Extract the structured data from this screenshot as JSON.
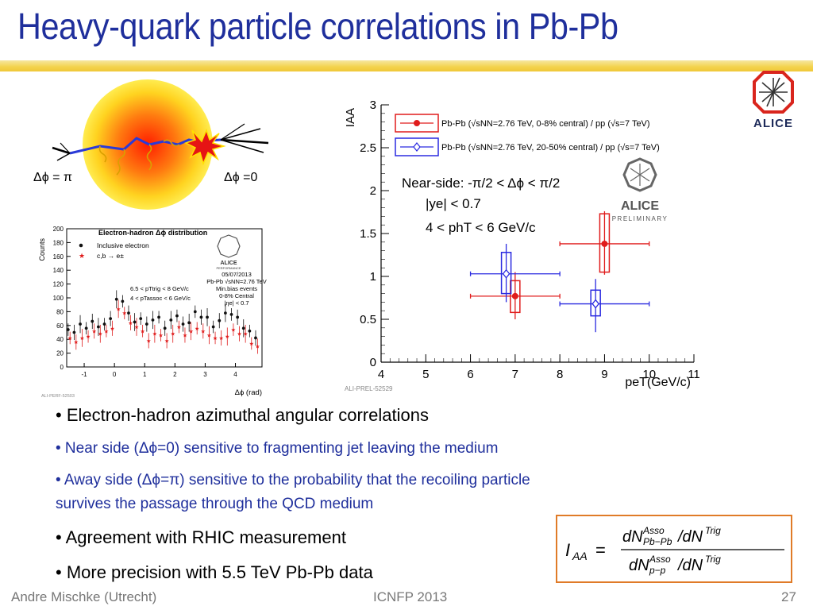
{
  "slide": {
    "title": "Heavy-quark particle correlations in Pb-Pb",
    "footer_author": "Andre Mischke (Utrecht)",
    "footer_conference": "ICNFP 2013",
    "page_number": "27"
  },
  "logo": {
    "text": "ALICE",
    "colors": {
      "red": "#d9251d",
      "navy": "#1d2a59"
    }
  },
  "schematic": {
    "label_away": "Δϕ = π",
    "label_near": "Δϕ =0"
  },
  "electron_hadron_plot": {
    "title": "Electron-hadron Δϕ distribution",
    "ylabel": "Counts",
    "xlabel": "Δϕ (rad)",
    "legend": [
      "Inclusive electron",
      "c,b → e±"
    ],
    "info_lines": [
      "05/07/2013",
      "Pb-Pb  √sNN=2.76 TeV",
      "Min.bias events",
      "0-8% Central",
      "|ηe| < 0.7"
    ],
    "cut_lines": [
      "6.5 < pTtrig < 8 GeV/c",
      "4 < pTassoc < 6 GeV/c"
    ],
    "badge_text": "ALICE",
    "badge_sub": "PERFORMANCE",
    "ref_text": "ALI-PERF-52503",
    "chart_data": {
      "type": "scatter",
      "x": [
        -1.5,
        -1.3,
        -1.1,
        -0.9,
        -0.7,
        -0.5,
        -0.3,
        -0.1,
        0.1,
        0.3,
        0.5,
        0.7,
        0.9,
        1.1,
        1.3,
        1.5,
        1.7,
        1.9,
        2.1,
        2.3,
        2.5,
        2.7,
        2.9,
        3.1,
        3.3,
        3.5,
        3.7,
        3.9,
        4.1,
        4.3,
        4.5,
        4.7
      ],
      "series": [
        {
          "name": "Inclusive electron",
          "color": "#111111",
          "values": [
            54,
            50,
            62,
            56,
            66,
            58,
            62,
            70,
            98,
            95,
            78,
            65,
            70,
            62,
            68,
            72,
            56,
            68,
            74,
            62,
            64,
            80,
            72,
            72,
            58,
            67,
            78,
            76,
            72,
            56,
            52,
            42
          ]
        },
        {
          "name": "c,b → e±",
          "color": "#e01c1c",
          "values": [
            42,
            36,
            42,
            44,
            52,
            48,
            52,
            56,
            84,
            78,
            64,
            58,
            52,
            38,
            48,
            46,
            38,
            48,
            58,
            46,
            52,
            56,
            52,
            46,
            42,
            42,
            44,
            54,
            48,
            48,
            34,
            30
          ]
        }
      ],
      "xlim": [
        -1.5,
        4.7
      ],
      "ylim": [
        0,
        200
      ],
      "xticks": [
        -1,
        0,
        1,
        2,
        3,
        4
      ],
      "yticks": [
        0,
        20,
        40,
        60,
        80,
        100,
        120,
        140,
        160,
        180,
        200
      ]
    }
  },
  "iaa_plot": {
    "legend": [
      "Pb-Pb (√sNN=2.76 TeV, 0-8% central) / pp (√s=7 TeV)",
      "Pb-Pb (√sNN=2.76 TeV, 20-50% central) / pp (√s=7 TeV)"
    ],
    "annotation": [
      "Near-side: -π/2 < Δϕ < π/2",
      "|ye| < 0.7",
      "4 < phT < 6 GeV/c"
    ],
    "badge_text": "ALICE",
    "badge_sub": "PRELIMINARY",
    "ref_text": "ALI-PREL-52529",
    "ylabel": "IAA",
    "xlabel": "peT(GeV/c)",
    "chart_data": {
      "type": "scatter",
      "xlim": [
        4,
        11
      ],
      "ylim": [
        0,
        3
      ],
      "xticks": [
        4,
        5,
        6,
        7,
        8,
        9,
        10,
        11
      ],
      "yticks": [
        0,
        0.5,
        1,
        1.5,
        2,
        2.5,
        3
      ],
      "series": [
        {
          "name": "0-8% central",
          "color": "#e01c1c",
          "marker": "filled-circle",
          "points": [
            {
              "x": 7.0,
              "y": 0.77,
              "xerr_low": 6.0,
              "xerr_high": 8.0,
              "stat_low": 0.5,
              "stat_high": 1.05,
              "sys_low": 0.58,
              "sys_high": 0.95
            },
            {
              "x": 9.0,
              "y": 1.38,
              "xerr_low": 8.0,
              "xerr_high": 10.0,
              "stat_low": 1.02,
              "stat_high": 1.76,
              "sys_low": 1.05,
              "sys_high": 1.73
            }
          ]
        },
        {
          "name": "20-50% central",
          "color": "#2a2ae0",
          "marker": "open-diamond",
          "points": [
            {
              "x": 6.8,
              "y": 1.03,
              "xerr_low": 6.0,
              "xerr_high": 8.0,
              "stat_low": 0.7,
              "stat_high": 1.38,
              "sys_low": 0.8,
              "sys_high": 1.28
            },
            {
              "x": 8.8,
              "y": 0.68,
              "xerr_low": 8.0,
              "xerr_high": 10.0,
              "stat_low": 0.35,
              "stat_high": 0.97,
              "sys_low": 0.54,
              "sys_high": 0.84
            }
          ]
        }
      ]
    }
  },
  "bullets": {
    "b1": "• Electron-hadron azimuthal angular correlations",
    "s1": "• Near side (Δϕ=0) sensitive to fragmenting jet leaving the medium",
    "s2a": "• Away side (Δϕ=π) sensitive to the probability that the recoiling particle",
    "s2b": "survives the passage through the QCD medium",
    "b2": "• Agreement with RHIC measurement",
    "b3": "• More precision with 5.5 TeV Pb-Pb data"
  },
  "formula": {
    "lhs": "IAA =",
    "numerator": "dN Asso Pb−Pb / dN Trig",
    "denominator": "dN Asso p−p / dN Trig"
  }
}
